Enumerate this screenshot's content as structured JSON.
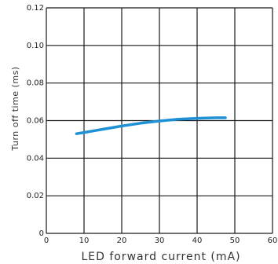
{
  "chart_data": {
    "type": "line",
    "title": "",
    "xlabel": "LED forward current (mA)",
    "ylabel": "Turn off time (ms)",
    "xlim": [
      0,
      60
    ],
    "ylim": [
      0,
      0.12
    ],
    "x_ticks": [
      0,
      10,
      20,
      30,
      40,
      50,
      60
    ],
    "x_tick_labels": [
      "0",
      "10",
      "20",
      "30",
      "40",
      "50",
      "60"
    ],
    "y_ticks": [
      0,
      0.02,
      0.04,
      0.06,
      0.08,
      0.1,
      0.12
    ],
    "y_tick_labels": [
      "0",
      "0.02",
      "0.04",
      "0.06",
      "0.08",
      "0.10",
      "0.12"
    ],
    "grid": true,
    "series": [
      {
        "color": "#1e90d6",
        "x": [
          8,
          10,
          15,
          20,
          25,
          30,
          35,
          40,
          45,
          47.5
        ],
        "y": [
          0.053,
          0.0537,
          0.0554,
          0.0571,
          0.0586,
          0.0598,
          0.0607,
          0.0612,
          0.0615,
          0.0615
        ]
      }
    ]
  }
}
